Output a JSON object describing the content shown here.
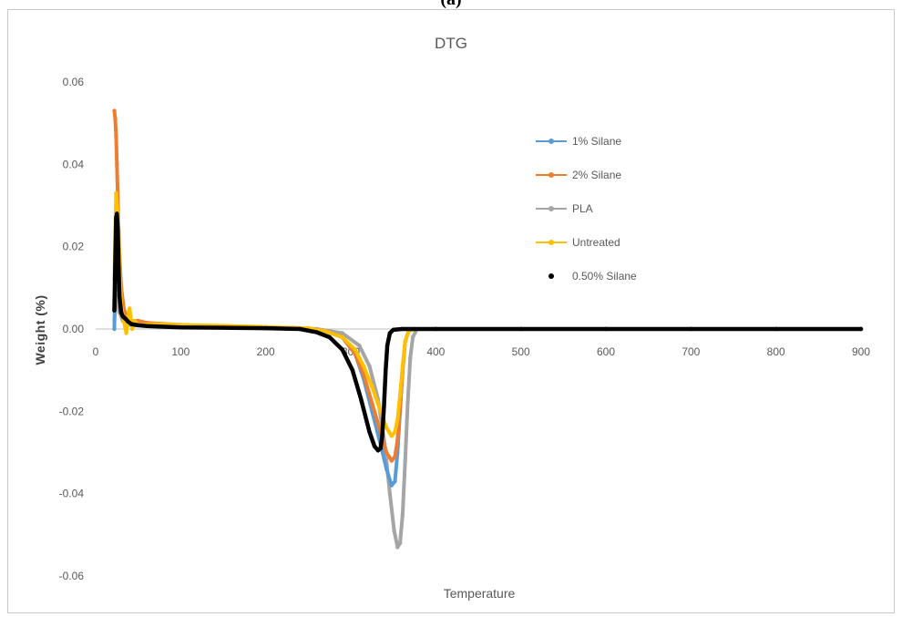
{
  "panel_label": "(a)",
  "chart_data": {
    "type": "scatter",
    "title": "DTG",
    "xlabel": "Temperature",
    "ylabel": "Weight (%)",
    "xlim": [
      0,
      900
    ],
    "ylim": [
      -0.06,
      0.06
    ],
    "xticks": [
      "0",
      "100",
      "200",
      "300",
      "400",
      "500",
      "600",
      "700",
      "800",
      "900"
    ],
    "yticks": [
      "0.06",
      "0.04",
      "0.02",
      "0.00",
      "-0.02",
      "-0.04",
      "-0.06"
    ],
    "grid": false,
    "legend_position": "top-right",
    "series": [
      {
        "name": "1% Silane",
        "color": "#5b9bd5",
        "marker": "line-dot",
        "points": [
          [
            22,
            0.0
          ],
          [
            24,
            0.03
          ],
          [
            26,
            0.026
          ],
          [
            28,
            0.018
          ],
          [
            30,
            0.01
          ],
          [
            33,
            0.005
          ],
          [
            36,
            0.003
          ],
          [
            40,
            0.002
          ],
          [
            50,
            0.0015
          ],
          [
            70,
            0.001
          ],
          [
            100,
            0.0008
          ],
          [
            150,
            0.0006
          ],
          [
            200,
            0.0004
          ],
          [
            250,
            0.0002
          ],
          [
            270,
            -0.0005
          ],
          [
            290,
            -0.002
          ],
          [
            305,
            -0.006
          ],
          [
            315,
            -0.012
          ],
          [
            325,
            -0.02
          ],
          [
            335,
            -0.028
          ],
          [
            342,
            -0.034
          ],
          [
            348,
            -0.038
          ],
          [
            352,
            -0.037
          ],
          [
            355,
            -0.03
          ],
          [
            358,
            -0.02
          ],
          [
            361,
            -0.01
          ],
          [
            364,
            -0.003
          ],
          [
            368,
            -0.0005
          ],
          [
            375,
            0.0
          ],
          [
            400,
            0.0
          ],
          [
            500,
            0.0
          ],
          [
            600,
            0.0
          ],
          [
            700,
            0.0
          ],
          [
            800,
            0.0
          ],
          [
            900,
            0.0
          ]
        ]
      },
      {
        "name": "2% Silane",
        "color": "#ed7d31",
        "marker": "line-dot",
        "points": [
          [
            22,
            0.053
          ],
          [
            23,
            0.051
          ],
          [
            24,
            0.047
          ],
          [
            25,
            0.04
          ],
          [
            26,
            0.032
          ],
          [
            27,
            0.024
          ],
          [
            28,
            0.017
          ],
          [
            30,
            0.01
          ],
          [
            33,
            0.005
          ],
          [
            36,
            0.003
          ],
          [
            40,
            0.002
          ],
          [
            50,
            0.002
          ],
          [
            60,
            0.0015
          ],
          [
            100,
            0.001
          ],
          [
            150,
            0.0006
          ],
          [
            200,
            0.0004
          ],
          [
            250,
            0.0002
          ],
          [
            270,
            -0.0005
          ],
          [
            290,
            -0.002
          ],
          [
            305,
            -0.006
          ],
          [
            315,
            -0.011
          ],
          [
            325,
            -0.018
          ],
          [
            335,
            -0.025
          ],
          [
            342,
            -0.03
          ],
          [
            348,
            -0.032
          ],
          [
            352,
            -0.031
          ],
          [
            355,
            -0.027
          ],
          [
            358,
            -0.019
          ],
          [
            361,
            -0.01
          ],
          [
            364,
            -0.003
          ],
          [
            368,
            -0.0005
          ],
          [
            375,
            0.0
          ],
          [
            400,
            0.0
          ],
          [
            500,
            0.0
          ],
          [
            600,
            0.0
          ],
          [
            700,
            0.0
          ],
          [
            800,
            0.0
          ],
          [
            900,
            0.0
          ]
        ]
      },
      {
        "name": "PLA",
        "color": "#a5a5a5",
        "marker": "line-dot",
        "points": [
          [
            22,
            0.002
          ],
          [
            25,
            0.01
          ],
          [
            28,
            0.004
          ],
          [
            32,
            0.002
          ],
          [
            40,
            0.001
          ],
          [
            60,
            0.0008
          ],
          [
            100,
            0.0005
          ],
          [
            200,
            0.0003
          ],
          [
            260,
            0.0
          ],
          [
            290,
            -0.001
          ],
          [
            310,
            -0.004
          ],
          [
            322,
            -0.009
          ],
          [
            332,
            -0.017
          ],
          [
            340,
            -0.028
          ],
          [
            346,
            -0.04
          ],
          [
            351,
            -0.049
          ],
          [
            355,
            -0.053
          ],
          [
            358,
            -0.052
          ],
          [
            361,
            -0.045
          ],
          [
            364,
            -0.032
          ],
          [
            367,
            -0.018
          ],
          [
            370,
            -0.007
          ],
          [
            373,
            -0.002
          ],
          [
            378,
            0.0
          ],
          [
            400,
            0.0
          ],
          [
            500,
            0.0
          ],
          [
            600,
            0.0
          ],
          [
            700,
            0.0
          ],
          [
            800,
            0.0
          ],
          [
            900,
            0.0
          ]
        ]
      },
      {
        "name": "Untreated",
        "color": "#ffc000",
        "marker": "line-dot",
        "points": [
          [
            22,
            0.012
          ],
          [
            24,
            0.033
          ],
          [
            26,
            0.028
          ],
          [
            28,
            0.015
          ],
          [
            30,
            0.006
          ],
          [
            33,
            0.002
          ],
          [
            36,
            -0.001
          ],
          [
            38,
            0.003
          ],
          [
            40,
            0.005
          ],
          [
            43,
            0.0
          ],
          [
            46,
            0.002
          ],
          [
            50,
            0.001
          ],
          [
            70,
            0.0012
          ],
          [
            100,
            0.001
          ],
          [
            150,
            0.0008
          ],
          [
            200,
            0.0005
          ],
          [
            250,
            0.0002
          ],
          [
            270,
            -0.0005
          ],
          [
            290,
            -0.002
          ],
          [
            305,
            -0.005
          ],
          [
            315,
            -0.009
          ],
          [
            325,
            -0.014
          ],
          [
            335,
            -0.02
          ],
          [
            342,
            -0.024
          ],
          [
            348,
            -0.026
          ],
          [
            352,
            -0.025
          ],
          [
            355,
            -0.022
          ],
          [
            358,
            -0.016
          ],
          [
            361,
            -0.009
          ],
          [
            364,
            -0.003
          ],
          [
            368,
            -0.0005
          ],
          [
            375,
            0.0
          ],
          [
            400,
            0.0
          ],
          [
            500,
            0.0
          ],
          [
            600,
            0.0
          ],
          [
            700,
            0.0
          ],
          [
            800,
            0.0
          ],
          [
            900,
            0.0
          ]
        ]
      },
      {
        "name": "0.50% Silane",
        "color": "#000000",
        "marker": "dot",
        "points": [
          [
            22,
            0.0045
          ],
          [
            24,
            0.027
          ],
          [
            25,
            0.028
          ],
          [
            26,
            0.024
          ],
          [
            27,
            0.015
          ],
          [
            28,
            0.008
          ],
          [
            30,
            0.004
          ],
          [
            32,
            0.003
          ],
          [
            35,
            0.0025
          ],
          [
            38,
            0.0018
          ],
          [
            42,
            0.0012
          ],
          [
            50,
            0.0009
          ],
          [
            60,
            0.0007
          ],
          [
            100,
            0.0004
          ],
          [
            150,
            0.0003
          ],
          [
            200,
            0.0002
          ],
          [
            240,
            0.0
          ],
          [
            260,
            -0.0008
          ],
          [
            275,
            -0.002
          ],
          [
            290,
            -0.005
          ],
          [
            302,
            -0.01
          ],
          [
            312,
            -0.017
          ],
          [
            322,
            -0.025
          ],
          [
            328,
            -0.0285
          ],
          [
            332,
            -0.0295
          ],
          [
            335,
            -0.029
          ],
          [
            337,
            -0.026
          ],
          [
            339,
            -0.019
          ],
          [
            341,
            -0.01
          ],
          [
            343,
            -0.004
          ],
          [
            346,
            -0.001
          ],
          [
            350,
            -0.0002
          ],
          [
            360,
            0.0
          ],
          [
            400,
            0.0
          ],
          [
            500,
            0.0
          ],
          [
            600,
            0.0
          ],
          [
            700,
            0.0
          ],
          [
            800,
            0.0
          ],
          [
            900,
            0.0
          ]
        ]
      }
    ]
  }
}
